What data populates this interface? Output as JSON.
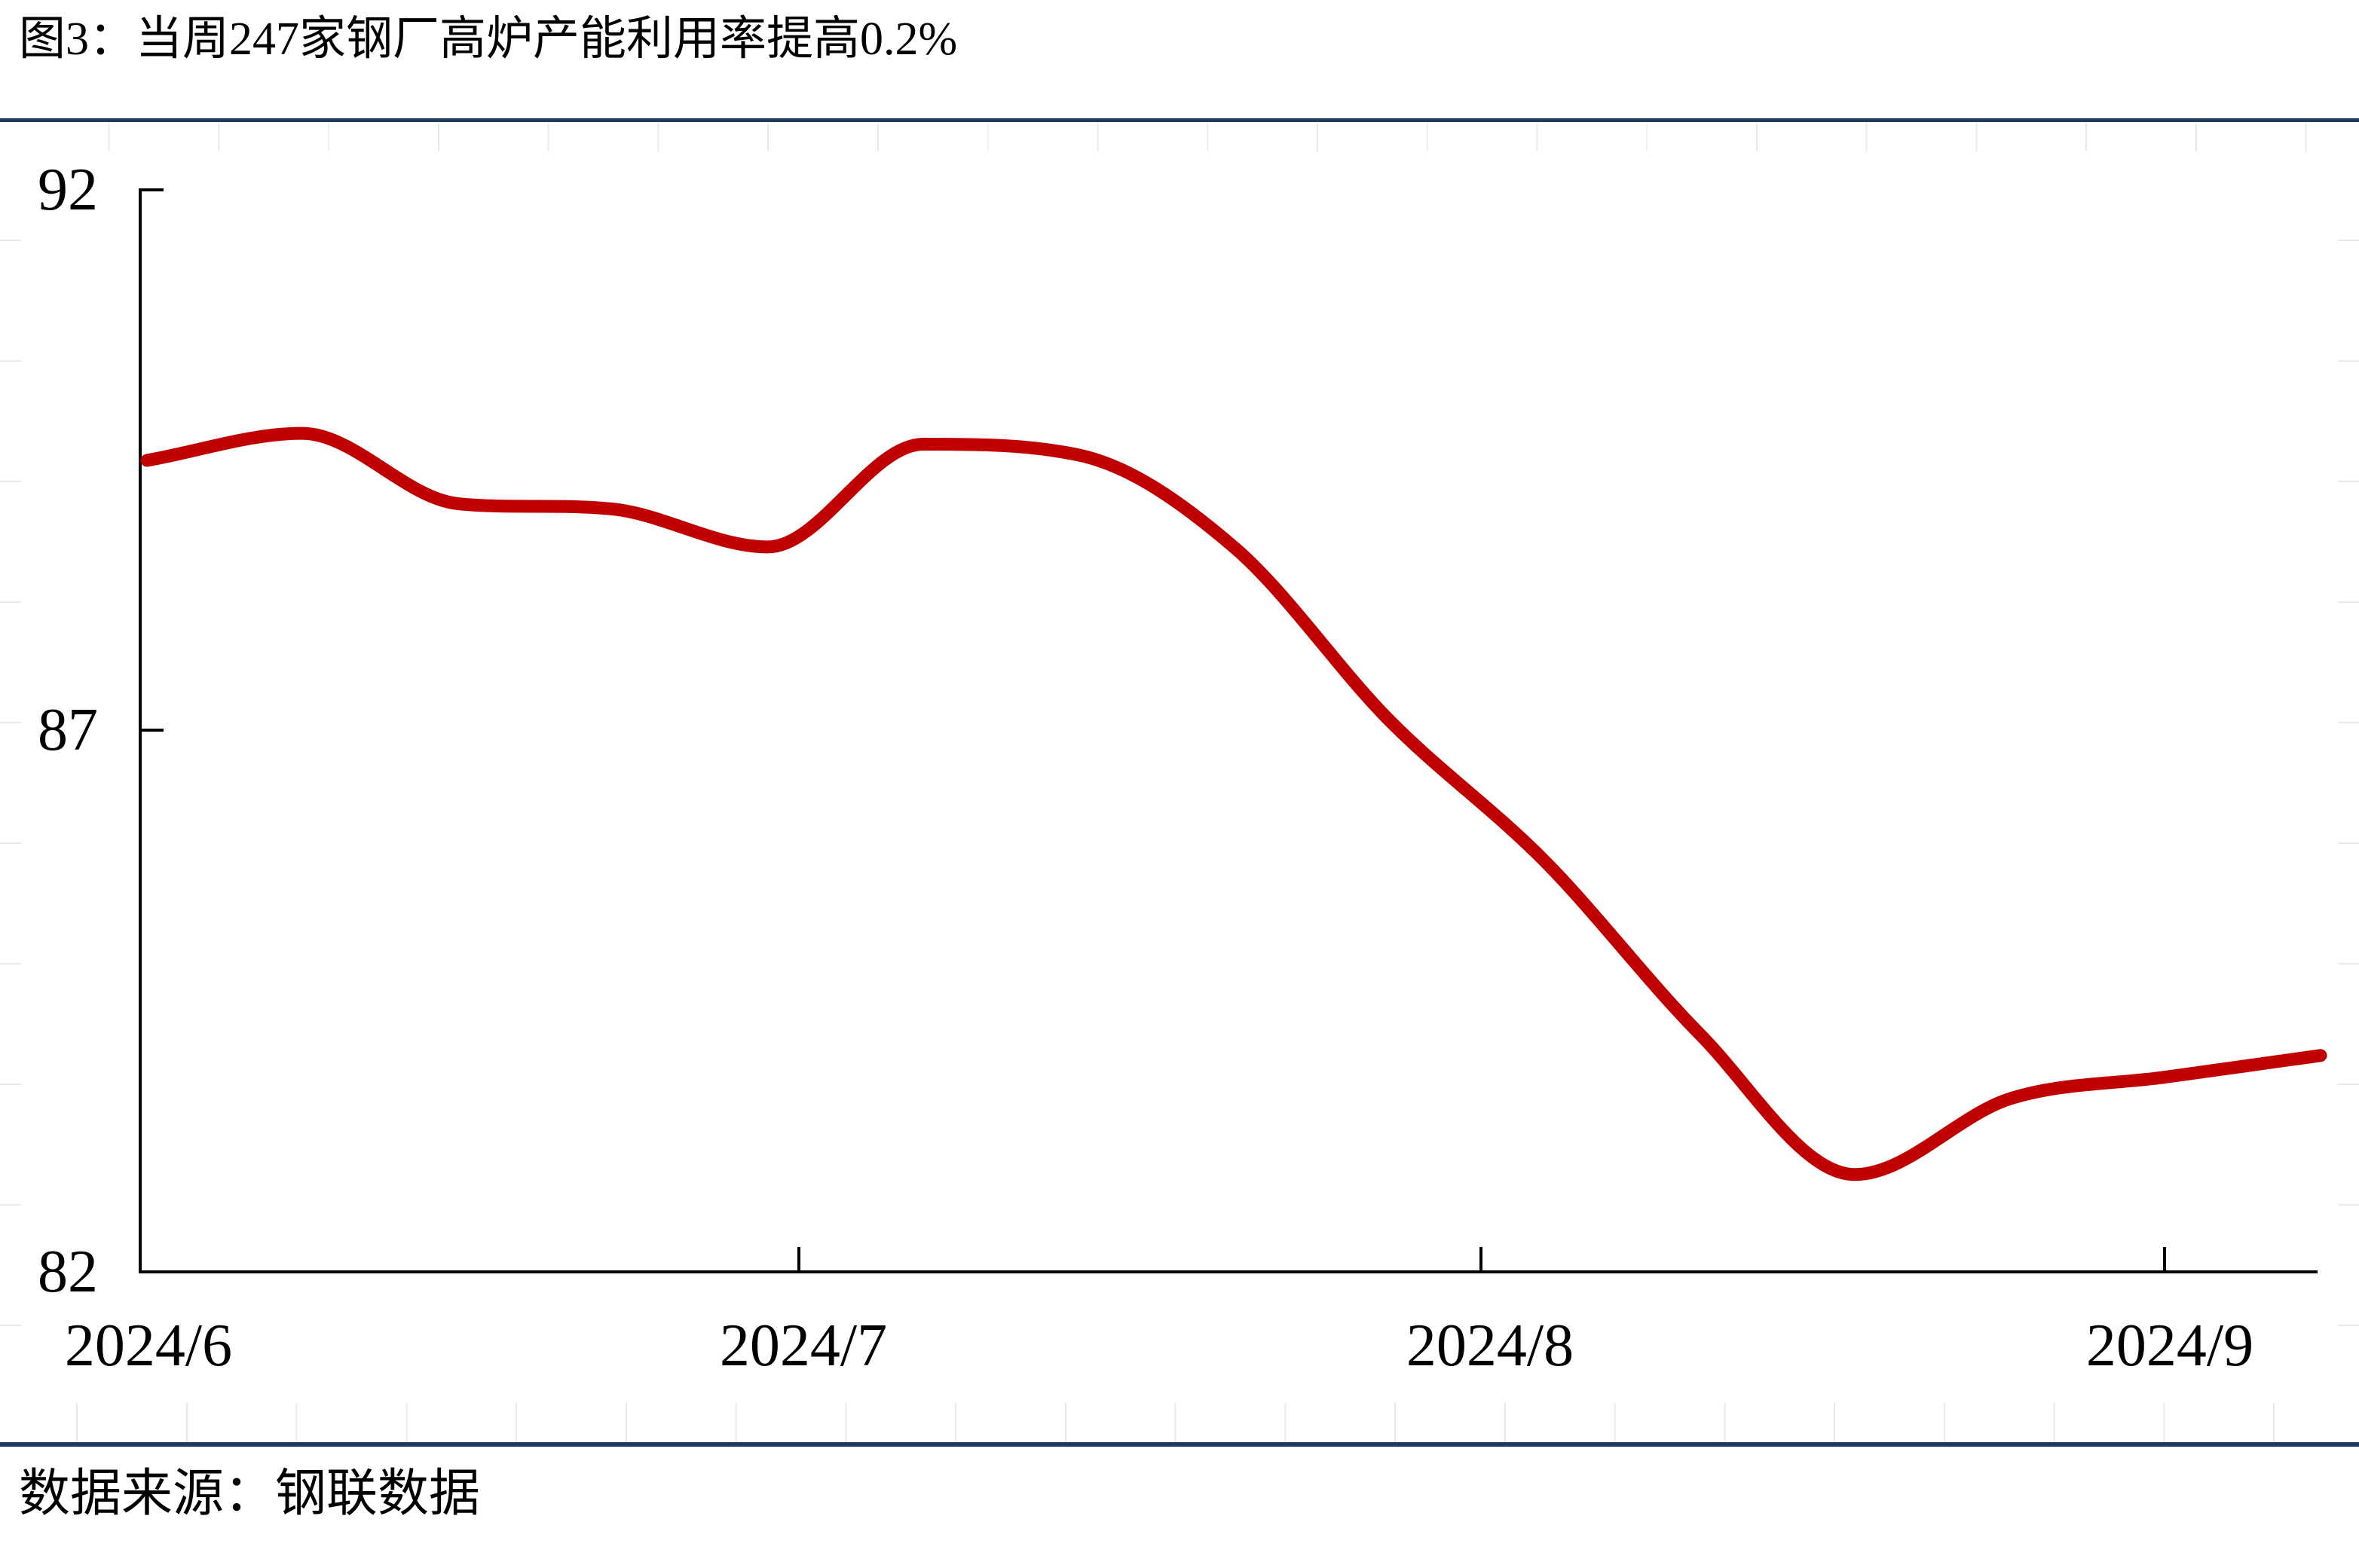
{
  "title": "图3：当周247家钢厂高炉产能利用率提高0.2%",
  "source": "数据来源：钢联数据",
  "colors": {
    "line": "#c00000",
    "separator": "#1f3864",
    "axis": "#000000",
    "faint_grid": "#e9e9e9"
  },
  "y_axis": {
    "ticks": [
      {
        "label": "92"
      },
      {
        "label": "87"
      },
      {
        "label": "82"
      }
    ]
  },
  "x_axis": {
    "ticks": [
      {
        "label": "2024/6"
      },
      {
        "label": "2024/7"
      },
      {
        "label": "2024/8"
      },
      {
        "label": "2024/9"
      }
    ]
  },
  "chart_data": {
    "type": "line",
    "title": "图3：当周247家钢厂高炉产能利用率提高0.2%",
    "x": [
      "2024-05-31",
      "2024-06-07",
      "2024-06-14",
      "2024-06-21",
      "2024-06-28",
      "2024-07-05",
      "2024-07-12",
      "2024-07-19",
      "2024-07-26",
      "2024-08-02",
      "2024-08-09",
      "2024-08-16",
      "2024-08-23",
      "2024-08-30",
      "2024-09-06"
    ],
    "values": [
      89.5,
      89.75,
      89.1,
      89.05,
      88.7,
      89.65,
      89.55,
      88.7,
      87.1,
      85.8,
      84.2,
      82.9,
      83.6,
      83.8,
      84.0
    ],
    "xlabel": "",
    "ylabel": "",
    "ylim": [
      82,
      92
    ],
    "yticks": [
      92,
      87,
      82
    ],
    "xtick_labels": [
      "2024/6",
      "2024/7",
      "2024/8",
      "2024/9"
    ],
    "grid": false,
    "legend": false,
    "line_color": "#c00000",
    "smoothed": true
  }
}
